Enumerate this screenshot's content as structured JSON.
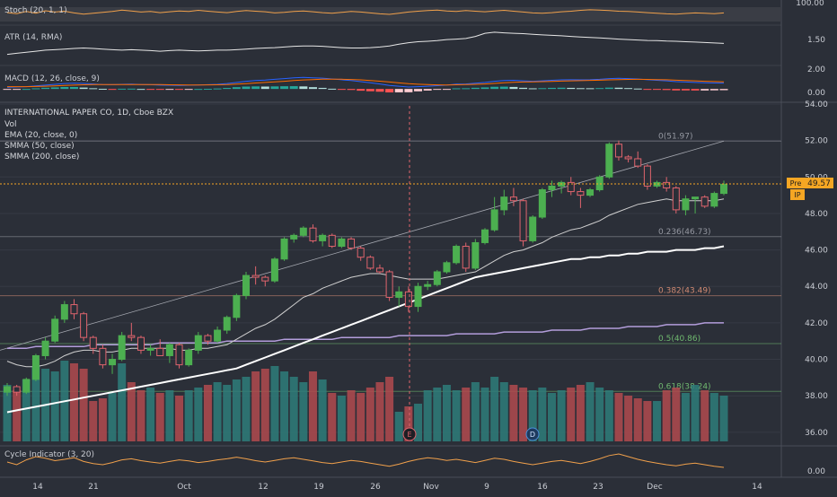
{
  "panels": {
    "stoch": {
      "label": "Stoch (20, 1, 1)",
      "ticks": [
        "100.00"
      ]
    },
    "atr": {
      "label": "ATR (14, RMA)",
      "ticks": [
        "1.50"
      ]
    },
    "macd": {
      "label": "MACD (12, 26, close, 9)",
      "ticks": [
        "2.00",
        "0.00"
      ]
    },
    "cycle": {
      "label": "Cycle Indicator (3, 20)",
      "ticks": [
        "0.00"
      ]
    }
  },
  "main": {
    "title": "INTERNATIONAL PAPER CO, 1D, Cboe BZX",
    "legend": [
      "Vol",
      "EMA (20, close, 0)",
      "SMMA (50, close)",
      "SMMA (200, close)"
    ],
    "price_ticks": [
      "54.00",
      "52.00",
      "50.00",
      "48.00",
      "46.00",
      "44.00",
      "42.00",
      "40.00",
      "38.00",
      "36.00"
    ],
    "fib": [
      {
        "label": "0(51.97)",
        "price": 51.97,
        "color": "#9598a1"
      },
      {
        "label": "0.236(46.73)",
        "price": 46.73,
        "color": "#9598a1"
      },
      {
        "label": "0.382(43.49)",
        "price": 43.49,
        "color": "#d08a72"
      },
      {
        "label": "0.5(40.86)",
        "price": 40.86,
        "color": "#6fb86f"
      },
      {
        "label": "0.618(38.24)",
        "price": 38.24,
        "color": "#6fb86f"
      }
    ],
    "price_badge": {
      "tag": "Pre",
      "value": "49.57",
      "symbol": "IP"
    },
    "event_markers": [
      {
        "letter": "E"
      },
      {
        "letter": "D"
      }
    ]
  },
  "x_axis": [
    "14",
    "21",
    "Oct",
    "12",
    "19",
    "26",
    "Nov",
    "9",
    "16",
    "23",
    "Dec",
    "14"
  ],
  "colors": {
    "up": "#4caf50",
    "down": "#e0646d",
    "vol_up": "#2e7d7a",
    "vol_down": "#b24a4f"
  },
  "chart_data": [
    {
      "type": "candlestick",
      "title": "INTERNATIONAL PAPER CO, 1D, Cboe BZX",
      "ylim": [
        35.5,
        54.0
      ],
      "last_price": 49.57,
      "ohlc": [
        [
          38.2,
          38.7,
          38.0,
          38.5
        ],
        [
          38.5,
          38.6,
          38.0,
          38.2
        ],
        [
          38.2,
          39.0,
          38.1,
          38.9
        ],
        [
          38.9,
          40.3,
          38.8,
          40.2
        ],
        [
          40.2,
          41.2,
          40.0,
          41.0
        ],
        [
          41.0,
          42.4,
          40.9,
          42.2
        ],
        [
          42.2,
          43.2,
          42.0,
          43.0
        ],
        [
          43.0,
          43.3,
          42.2,
          42.5
        ],
        [
          42.5,
          42.6,
          41.0,
          41.2
        ],
        [
          41.2,
          41.3,
          40.3,
          40.6
        ],
        [
          40.6,
          40.8,
          39.5,
          39.7
        ],
        [
          39.7,
          40.3,
          39.2,
          40.0
        ],
        [
          40.0,
          41.5,
          39.9,
          41.3
        ],
        [
          41.3,
          42.0,
          41.0,
          41.2
        ],
        [
          41.2,
          41.3,
          40.3,
          40.5
        ],
        [
          40.5,
          40.8,
          40.2,
          40.6
        ],
        [
          40.6,
          41.1,
          40.2,
          40.2
        ],
        [
          40.2,
          40.9,
          39.8,
          40.8
        ],
        [
          40.8,
          40.9,
          39.5,
          39.7
        ],
        [
          39.7,
          40.6,
          39.6,
          40.5
        ],
        [
          40.5,
          41.5,
          40.3,
          41.3
        ],
        [
          41.3,
          41.4,
          40.8,
          41.0
        ],
        [
          41.0,
          41.8,
          40.9,
          41.6
        ],
        [
          41.6,
          42.4,
          41.4,
          42.3
        ],
        [
          42.3,
          43.6,
          42.1,
          43.5
        ],
        [
          43.5,
          44.8,
          43.3,
          44.6
        ],
        [
          44.6,
          45.1,
          44.1,
          44.5
        ],
        [
          44.5,
          44.6,
          44.0,
          44.3
        ],
        [
          44.3,
          45.6,
          44.2,
          45.5
        ],
        [
          45.5,
          46.7,
          45.4,
          46.6
        ],
        [
          46.6,
          46.9,
          46.4,
          46.8
        ],
        [
          46.8,
          47.3,
          46.7,
          47.2
        ],
        [
          47.2,
          47.4,
          46.4,
          46.5
        ],
        [
          46.5,
          46.9,
          46.2,
          46.8
        ],
        [
          46.8,
          46.9,
          46.1,
          46.2
        ],
        [
          46.2,
          46.7,
          46.1,
          46.6
        ],
        [
          46.6,
          46.7,
          46.0,
          46.1
        ],
        [
          46.1,
          46.2,
          45.4,
          45.6
        ],
        [
          45.6,
          45.7,
          44.9,
          45.0
        ],
        [
          45.0,
          45.2,
          44.7,
          44.8
        ],
        [
          44.8,
          44.9,
          43.2,
          43.4
        ],
        [
          43.4,
          44.0,
          42.9,
          43.7
        ],
        [
          43.7,
          44.0,
          42.6,
          42.9
        ],
        [
          42.9,
          44.2,
          42.6,
          44.0
        ],
        [
          44.0,
          44.3,
          43.8,
          44.1
        ],
        [
          44.1,
          44.9,
          44.0,
          44.8
        ],
        [
          44.8,
          45.4,
          44.7,
          45.3
        ],
        [
          45.3,
          46.3,
          45.2,
          46.2
        ],
        [
          46.2,
          46.4,
          44.8,
          45.0
        ],
        [
          45.0,
          46.6,
          44.9,
          46.4
        ],
        [
          46.4,
          47.2,
          46.3,
          47.1
        ],
        [
          47.1,
          48.9,
          47.0,
          48.2
        ],
        [
          48.2,
          49.3,
          47.9,
          48.9
        ],
        [
          48.9,
          49.4,
          48.4,
          48.7
        ],
        [
          48.7,
          48.8,
          46.2,
          46.5
        ],
        [
          46.5,
          47.9,
          46.4,
          47.8
        ],
        [
          47.8,
          49.4,
          47.7,
          49.3
        ],
        [
          49.3,
          49.8,
          48.9,
          49.5
        ],
        [
          49.5,
          49.8,
          49.1,
          49.7
        ],
        [
          49.7,
          50.0,
          49.0,
          49.2
        ],
        [
          49.2,
          49.4,
          48.3,
          49.0
        ],
        [
          49.0,
          49.4,
          48.9,
          49.3
        ],
        [
          49.3,
          50.1,
          49.2,
          50.0
        ],
        [
          50.0,
          51.9,
          49.9,
          51.8
        ],
        [
          51.8,
          52.0,
          50.9,
          51.1
        ],
        [
          51.1,
          51.2,
          50.8,
          51.0
        ],
        [
          51.0,
          51.4,
          50.5,
          50.6
        ],
        [
          50.6,
          50.7,
          49.3,
          49.5
        ],
        [
          49.5,
          49.8,
          49.4,
          49.7
        ],
        [
          49.7,
          50.0,
          49.2,
          49.4
        ],
        [
          49.4,
          49.5,
          48.0,
          48.2
        ],
        [
          48.2,
          49.0,
          47.9,
          48.8
        ],
        [
          48.8,
          48.9,
          48.0,
          48.9
        ],
        [
          48.9,
          49.0,
          48.3,
          48.4
        ],
        [
          48.4,
          49.2,
          48.3,
          49.1
        ],
        [
          49.1,
          49.8,
          49.0,
          49.6
        ]
      ],
      "volume": [
        1.05,
        0.95,
        1.15,
        1.4,
        1.35,
        1.3,
        1.5,
        1.45,
        1.35,
        0.75,
        0.8,
        0.9,
        1.45,
        1.1,
        0.95,
        1.0,
        0.9,
        0.95,
        0.85,
        0.95,
        1.0,
        1.05,
        1.1,
        1.05,
        1.15,
        1.2,
        1.3,
        1.35,
        1.4,
        1.3,
        1.2,
        1.1,
        1.3,
        1.15,
        0.9,
        0.85,
        0.95,
        0.9,
        1.0,
        1.1,
        1.2,
        0.55,
        0.65,
        0.7,
        0.95,
        1.0,
        1.05,
        0.95,
        1.0,
        1.1,
        1.0,
        1.2,
        1.1,
        1.05,
        1.0,
        0.95,
        1.0,
        0.9,
        0.95,
        1.0,
        1.05,
        1.1,
        1.0,
        0.95,
        0.9,
        0.85,
        0.8,
        0.75,
        0.75,
        0.95,
        1.0,
        0.9,
        1.05,
        0.95,
        0.9,
        0.85
      ],
      "ema20": [
        39.9,
        39.7,
        39.6,
        39.6,
        39.7,
        39.9,
        40.2,
        40.4,
        40.5,
        40.5,
        40.4,
        40.4,
        40.5,
        40.6,
        40.6,
        40.6,
        40.6,
        40.6,
        40.5,
        40.5,
        40.6,
        40.6,
        40.7,
        40.8,
        41.1,
        41.4,
        41.7,
        41.9,
        42.2,
        42.6,
        43.0,
        43.4,
        43.6,
        43.9,
        44.1,
        44.3,
        44.5,
        44.6,
        44.7,
        44.7,
        44.6,
        44.5,
        44.4,
        44.4,
        44.4,
        44.4,
        44.5,
        44.6,
        44.7,
        44.8,
        45.1,
        45.4,
        45.7,
        45.9,
        46.0,
        46.2,
        46.4,
        46.7,
        46.9,
        47.1,
        47.2,
        47.4,
        47.6,
        47.9,
        48.1,
        48.3,
        48.5,
        48.6,
        48.7,
        48.8,
        48.7,
        48.7,
        48.7,
        48.7,
        48.7,
        48.8
      ],
      "smma50": [
        37.1,
        37.2,
        37.3,
        37.4,
        37.5,
        37.6,
        37.7,
        37.8,
        37.9,
        38.0,
        38.1,
        38.2,
        38.3,
        38.4,
        38.5,
        38.6,
        38.7,
        38.8,
        38.9,
        39.0,
        39.1,
        39.2,
        39.3,
        39.4,
        39.5,
        39.7,
        39.9,
        40.1,
        40.3,
        40.5,
        40.7,
        40.9,
        41.1,
        41.3,
        41.5,
        41.7,
        41.9,
        42.1,
        42.3,
        42.5,
        42.7,
        42.9,
        43.1,
        43.3,
        43.5,
        43.7,
        43.9,
        44.1,
        44.3,
        44.5,
        44.6,
        44.7,
        44.8,
        44.9,
        45.0,
        45.1,
        45.2,
        45.3,
        45.4,
        45.5,
        45.5,
        45.6,
        45.6,
        45.7,
        45.7,
        45.8,
        45.8,
        45.9,
        45.9,
        45.9,
        46.0,
        46.0,
        46.0,
        46.1,
        46.1,
        46.2
      ],
      "smma200": [
        40.6,
        40.6,
        40.6,
        40.7,
        40.7,
        40.7,
        40.7,
        40.7,
        40.7,
        40.8,
        40.8,
        40.8,
        40.8,
        40.8,
        40.8,
        40.8,
        40.9,
        40.9,
        40.9,
        40.9,
        40.9,
        40.9,
        40.9,
        41.0,
        41.0,
        41.0,
        41.0,
        41.0,
        41.0,
        41.1,
        41.1,
        41.1,
        41.1,
        41.1,
        41.1,
        41.2,
        41.2,
        41.2,
        41.2,
        41.2,
        41.2,
        41.3,
        41.3,
        41.3,
        41.3,
        41.3,
        41.3,
        41.4,
        41.4,
        41.4,
        41.4,
        41.4,
        41.5,
        41.5,
        41.5,
        41.5,
        41.5,
        41.6,
        41.6,
        41.6,
        41.6,
        41.7,
        41.7,
        41.7,
        41.7,
        41.8,
        41.8,
        41.8,
        41.8,
        41.9,
        41.9,
        41.9,
        41.9,
        42.0,
        42.0,
        42.0
      ],
      "trendline": {
        "from": [
          0,
          40.5
        ],
        "to": [
          75,
          51.97
        ]
      }
    },
    {
      "type": "line",
      "title": "Stoch (20, 1, 1)",
      "ylim": [
        0,
        100
      ],
      "values": [
        62,
        55,
        70,
        58,
        75,
        66,
        72,
        60,
        52,
        58,
        64,
        70,
        80,
        74,
        66,
        70,
        62,
        68,
        74,
        70,
        78,
        72,
        66,
        62,
        70,
        76,
        72,
        68,
        60,
        64,
        70,
        74,
        68,
        62,
        58,
        64,
        70,
        66,
        60,
        54,
        50,
        58,
        66,
        72,
        76,
        80,
        74,
        70,
        76,
        72,
        68,
        74,
        78,
        72,
        66,
        60,
        58,
        62,
        68,
        72,
        78,
        82,
        80,
        76,
        72,
        70,
        66,
        62,
        58,
        54,
        52,
        56,
        60,
        58,
        55,
        60
      ]
    },
    {
      "type": "line",
      "title": "ATR (14, RMA)",
      "ylim": [
        0.5,
        2.2
      ],
      "values": [
        0.9,
        0.95,
        1.0,
        1.05,
        1.1,
        1.12,
        1.15,
        1.18,
        1.2,
        1.18,
        1.15,
        1.12,
        1.1,
        1.12,
        1.1,
        1.08,
        1.05,
        1.08,
        1.1,
        1.08,
        1.06,
        1.08,
        1.1,
        1.1,
        1.12,
        1.15,
        1.18,
        1.2,
        1.22,
        1.25,
        1.28,
        1.3,
        1.3,
        1.28,
        1.25,
        1.22,
        1.2,
        1.2,
        1.22,
        1.25,
        1.3,
        1.38,
        1.45,
        1.5,
        1.52,
        1.55,
        1.6,
        1.62,
        1.65,
        1.75,
        1.9,
        1.95,
        1.92,
        1.9,
        1.88,
        1.85,
        1.82,
        1.8,
        1.78,
        1.75,
        1.72,
        1.7,
        1.68,
        1.65,
        1.62,
        1.6,
        1.58,
        1.56,
        1.55,
        1.53,
        1.52,
        1.5,
        1.48,
        1.46,
        1.44,
        1.42
      ]
    },
    {
      "type": "bar",
      "title": "MACD (12, 26, close, 9)",
      "ylim": [
        -1.5,
        2.7
      ],
      "macd": [
        0.2,
        0.25,
        0.3,
        0.4,
        0.5,
        0.6,
        0.7,
        0.75,
        0.72,
        0.65,
        0.58,
        0.55,
        0.6,
        0.62,
        0.58,
        0.55,
        0.5,
        0.48,
        0.45,
        0.48,
        0.52,
        0.55,
        0.6,
        0.7,
        0.85,
        1.0,
        1.1,
        1.15,
        1.25,
        1.35,
        1.45,
        1.5,
        1.45,
        1.4,
        1.3,
        1.2,
        1.1,
        0.95,
        0.8,
        0.65,
        0.45,
        0.35,
        0.25,
        0.3,
        0.35,
        0.42,
        0.5,
        0.62,
        0.65,
        0.75,
        0.85,
        1.0,
        1.1,
        1.12,
        1.05,
        1.0,
        1.05,
        1.12,
        1.18,
        1.2,
        1.18,
        1.2,
        1.25,
        1.35,
        1.38,
        1.35,
        1.3,
        1.2,
        1.12,
        1.05,
        0.95,
        0.9,
        0.85,
        0.8,
        0.78,
        0.76
      ],
      "signal": [
        0.3,
        0.3,
        0.3,
        0.32,
        0.35,
        0.4,
        0.45,
        0.5,
        0.54,
        0.56,
        0.56,
        0.56,
        0.57,
        0.58,
        0.58,
        0.57,
        0.56,
        0.54,
        0.53,
        0.52,
        0.52,
        0.53,
        0.54,
        0.57,
        0.62,
        0.69,
        0.77,
        0.84,
        0.92,
        1.0,
        1.09,
        1.17,
        1.22,
        1.26,
        1.27,
        1.26,
        1.23,
        1.18,
        1.1,
        1.01,
        0.9,
        0.79,
        0.68,
        0.61,
        0.56,
        0.53,
        0.52,
        0.54,
        0.56,
        0.6,
        0.65,
        0.72,
        0.8,
        0.86,
        0.9,
        0.92,
        0.95,
        0.98,
        1.02,
        1.06,
        1.08,
        1.11,
        1.14,
        1.18,
        1.22,
        1.24,
        1.25,
        1.24,
        1.22,
        1.19,
        1.14,
        1.09,
        1.05,
        1.0,
        0.96,
        0.92
      ]
    },
    {
      "type": "line",
      "title": "Cycle Indicator (3, 20)",
      "ylim": [
        0,
        100
      ],
      "values": [
        50,
        40,
        58,
        70,
        64,
        55,
        60,
        66,
        52,
        44,
        40,
        48,
        58,
        62,
        55,
        50,
        46,
        52,
        58,
        54,
        48,
        52,
        58,
        62,
        68,
        62,
        55,
        50,
        56,
        62,
        66,
        60,
        54,
        48,
        44,
        50,
        56,
        52,
        46,
        40,
        34,
        42,
        52,
        60,
        66,
        62,
        56,
        60,
        54,
        48,
        56,
        64,
        60,
        52,
        46,
        40,
        46,
        52,
        56,
        50,
        44,
        52,
        62,
        74,
        80,
        70,
        60,
        52,
        46,
        40,
        36,
        42,
        46,
        40,
        34,
        30
      ]
    }
  ]
}
